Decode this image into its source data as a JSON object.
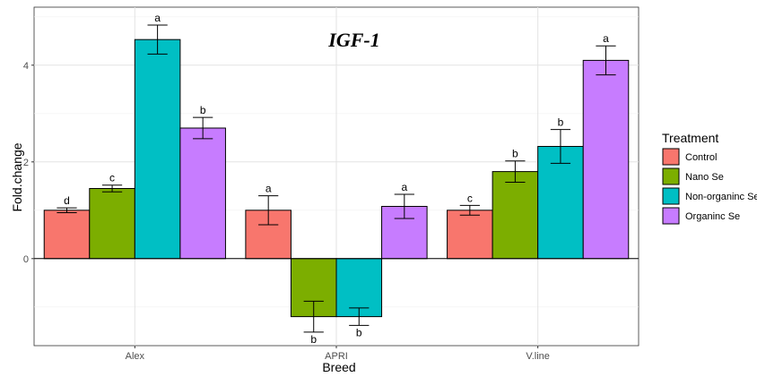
{
  "chart_data": {
    "type": "bar",
    "title": "IGF-1",
    "xlabel": "Breed",
    "ylabel": "Fold.change",
    "categories": [
      "Alex",
      "APRI",
      "V.line"
    ],
    "ylim": [
      -1.8,
      5.2
    ],
    "yticks": [
      0,
      2,
      4
    ],
    "grid": true,
    "legend_title": "Treatment",
    "legend_position": "right",
    "series": [
      {
        "name": "Control",
        "color": "#F8766D",
        "values": [
          1.0,
          1.0,
          1.0
        ],
        "errors": [
          0.05,
          0.3,
          0.1
        ],
        "letters": [
          "d",
          "a",
          "c"
        ]
      },
      {
        "name": "Nano Se",
        "color": "#7CAE00",
        "values": [
          1.45,
          -1.2,
          1.8
        ],
        "errors": [
          0.07,
          0.32,
          0.22
        ],
        "letters": [
          "c",
          "b",
          "b"
        ]
      },
      {
        "name": "Non-organinc Se",
        "color": "#00BFC4",
        "values": [
          4.53,
          -1.2,
          2.32
        ],
        "errors": [
          0.3,
          0.18,
          0.35
        ],
        "letters": [
          "a",
          "b",
          "b"
        ]
      },
      {
        "name": "Organinc Se",
        "color": "#C77CFF",
        "values": [
          2.7,
          1.08,
          4.1
        ],
        "errors": [
          0.22,
          0.25,
          0.3
        ],
        "letters": [
          "b",
          "a",
          "a"
        ]
      }
    ]
  }
}
